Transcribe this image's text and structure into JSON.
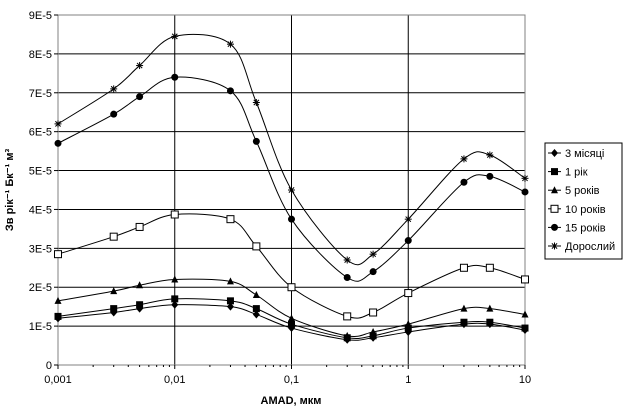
{
  "chart_data": {
    "type": "line",
    "xscale": "log",
    "xlim": [
      0.001,
      10
    ],
    "ylim": [
      0,
      9e-05
    ],
    "grid": true,
    "legend_position": "right",
    "xlabel": "AMAD, мкм",
    "ylabel": "Зв рік⁻¹ Бк⁻¹ м³",
    "x_tick_labels": [
      "0,001",
      "0,01",
      "0,1",
      "1",
      "10"
    ],
    "y_tick_labels": [
      "0",
      "1E-5",
      "2E-5",
      "3E-5",
      "4E-5",
      "5E-5",
      "6E-5",
      "7E-5",
      "8E-5",
      "9E-5"
    ],
    "x": [
      0.001,
      0.003,
      0.005,
      0.01,
      0.03,
      0.05,
      0.1,
      0.3,
      0.5,
      1,
      3,
      5,
      10
    ],
    "series": [
      {
        "name": "3 місяці",
        "marker": "diamond",
        "values": [
          1.2e-05,
          1.35e-05,
          1.45e-05,
          1.55e-05,
          1.5e-05,
          1.3e-05,
          9.5e-06,
          6.5e-06,
          7e-06,
          8.5e-06,
          1.05e-05,
          1.05e-05,
          9e-06
        ]
      },
      {
        "name": "1 рік",
        "marker": "square",
        "values": [
          1.25e-05,
          1.45e-05,
          1.55e-05,
          1.7e-05,
          1.65e-05,
          1.45e-05,
          1.05e-05,
          7e-06,
          7.5e-06,
          9.5e-06,
          1.1e-05,
          1.1e-05,
          9.5e-06
        ]
      },
      {
        "name": "5 років",
        "marker": "triangle",
        "values": [
          1.65e-05,
          1.9e-05,
          2.05e-05,
          2.2e-05,
          2.15e-05,
          1.8e-05,
          1.2e-05,
          7.5e-06,
          8.5e-06,
          1.05e-05,
          1.45e-05,
          1.45e-05,
          1.3e-05
        ]
      },
      {
        "name": "10 років",
        "marker": "open-square",
        "values": [
          2.85e-05,
          3.3e-05,
          3.55e-05,
          3.87e-05,
          3.75e-05,
          3.05e-05,
          2e-05,
          1.25e-05,
          1.35e-05,
          1.85e-05,
          2.5e-05,
          2.5e-05,
          2.2e-05
        ]
      },
      {
        "name": "15 років",
        "marker": "circle",
        "values": [
          5.7e-05,
          6.45e-05,
          6.9e-05,
          7.4e-05,
          7.05e-05,
          5.75e-05,
          3.75e-05,
          2.25e-05,
          2.4e-05,
          3.2e-05,
          4.7e-05,
          4.85e-05,
          4.45e-05
        ]
      },
      {
        "name": "Дорослий",
        "marker": "star",
        "values": [
          6.2e-05,
          7.1e-05,
          7.7e-05,
          8.45e-05,
          8.25e-05,
          6.75e-05,
          4.5e-05,
          2.7e-05,
          2.85e-05,
          3.75e-05,
          5.3e-05,
          5.4e-05,
          4.8e-05
        ]
      }
    ]
  }
}
